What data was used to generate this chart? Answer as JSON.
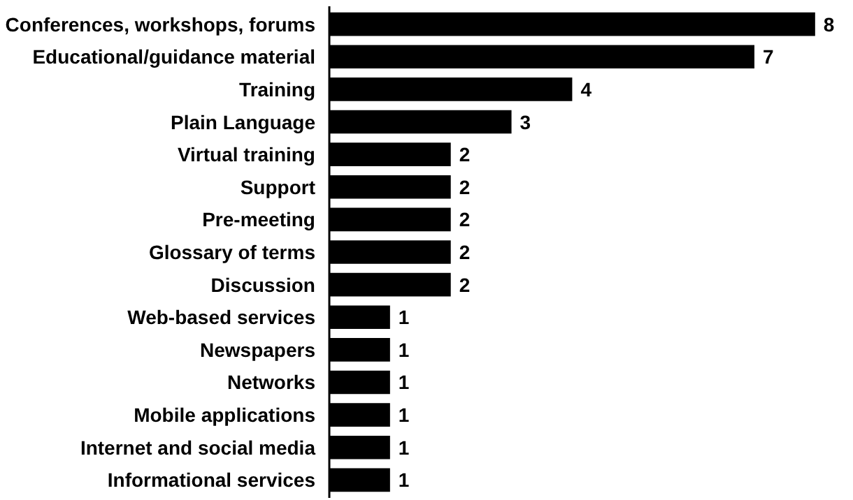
{
  "chart_data": {
    "type": "bar",
    "orientation": "horizontal",
    "categories": [
      "Conferences, workshops, forums",
      "Educational/guidance material",
      "Training",
      "Plain Language",
      "Virtual training",
      "Support",
      "Pre-meeting",
      "Glossary of terms",
      "Discussion",
      "Web-based services",
      "Newspapers",
      "Networks",
      "Mobile applications",
      "Internet and social media",
      "Informational services"
    ],
    "values": [
      8,
      7,
      4,
      3,
      2,
      2,
      2,
      2,
      2,
      1,
      1,
      1,
      1,
      1,
      1
    ],
    "color": "#000000",
    "data_labels": true,
    "grid": false
  }
}
